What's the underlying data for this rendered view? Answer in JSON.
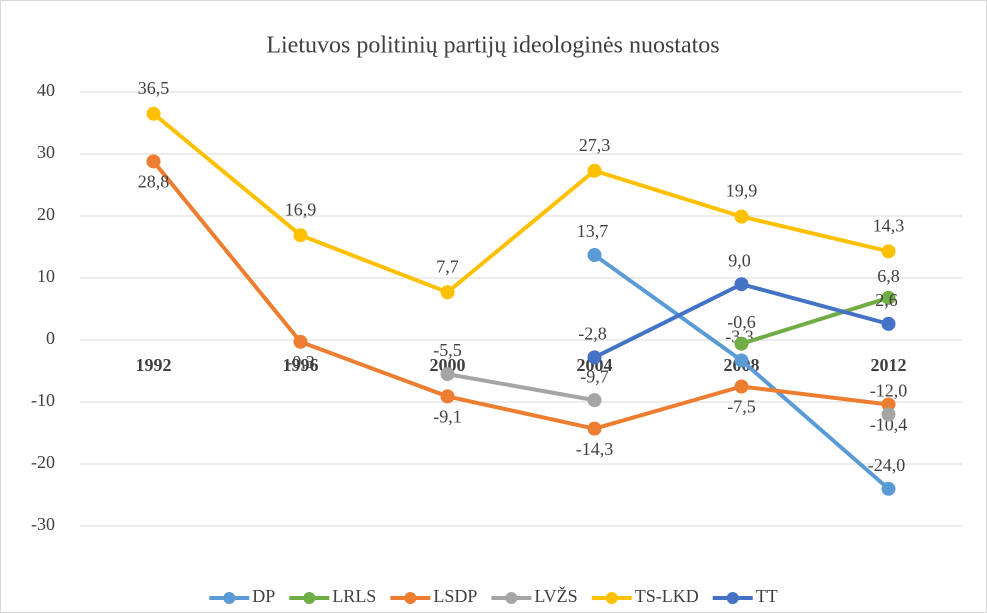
{
  "chart_data": {
    "type": "line",
    "title": "Lietuvos politinių partijų ideologinės nuostatos",
    "categories": [
      "1992",
      "1996",
      "2000",
      "2004",
      "2008",
      "2012"
    ],
    "series": [
      {
        "name": "DP",
        "color": "#5b9bd5",
        "values": [
          null,
          null,
          null,
          13.7,
          -3.3,
          -24.0
        ],
        "value_labels": [
          null,
          null,
          null,
          "13,7",
          "-3,3",
          "-24,0"
        ]
      },
      {
        "name": "LRLS",
        "color": "#70ad47",
        "values": [
          null,
          null,
          null,
          null,
          -0.6,
          6.8
        ],
        "value_labels": [
          null,
          null,
          null,
          null,
          "-0,6",
          "6,8"
        ]
      },
      {
        "name": "LSDP",
        "color": "#ed7d31",
        "values": [
          28.8,
          -0.3,
          -9.1,
          -14.3,
          -7.5,
          -10.4
        ],
        "value_labels": [
          "28,8",
          "-0,3",
          "-9,1",
          "-14,3",
          "-7,5",
          "-10,4"
        ]
      },
      {
        "name": "LVŽS",
        "color": "#a5a5a5",
        "values": [
          null,
          null,
          -5.5,
          -9.7,
          null,
          -12.0
        ],
        "value_labels": [
          null,
          null,
          "-5,5",
          "-9,7",
          null,
          "-12,0"
        ]
      },
      {
        "name": "TS-LKD",
        "color": "#ffc000",
        "values": [
          36.5,
          16.9,
          7.7,
          27.3,
          19.9,
          14.3
        ],
        "value_labels": [
          "36,5",
          "16,9",
          "7,7",
          "27,3",
          "19,9",
          "14,3"
        ]
      },
      {
        "name": "TT",
        "color": "#4472c4",
        "values": [
          null,
          null,
          null,
          -2.8,
          9.0,
          2.6
        ],
        "value_labels": [
          null,
          null,
          null,
          "-2,8",
          "9,0",
          "2,6"
        ]
      }
    ],
    "ylim": [
      -30,
      40
    ],
    "yticks": [
      -30,
      -20,
      -10,
      0,
      10,
      20,
      30,
      40
    ],
    "grid": true,
    "legend": "bottom"
  }
}
